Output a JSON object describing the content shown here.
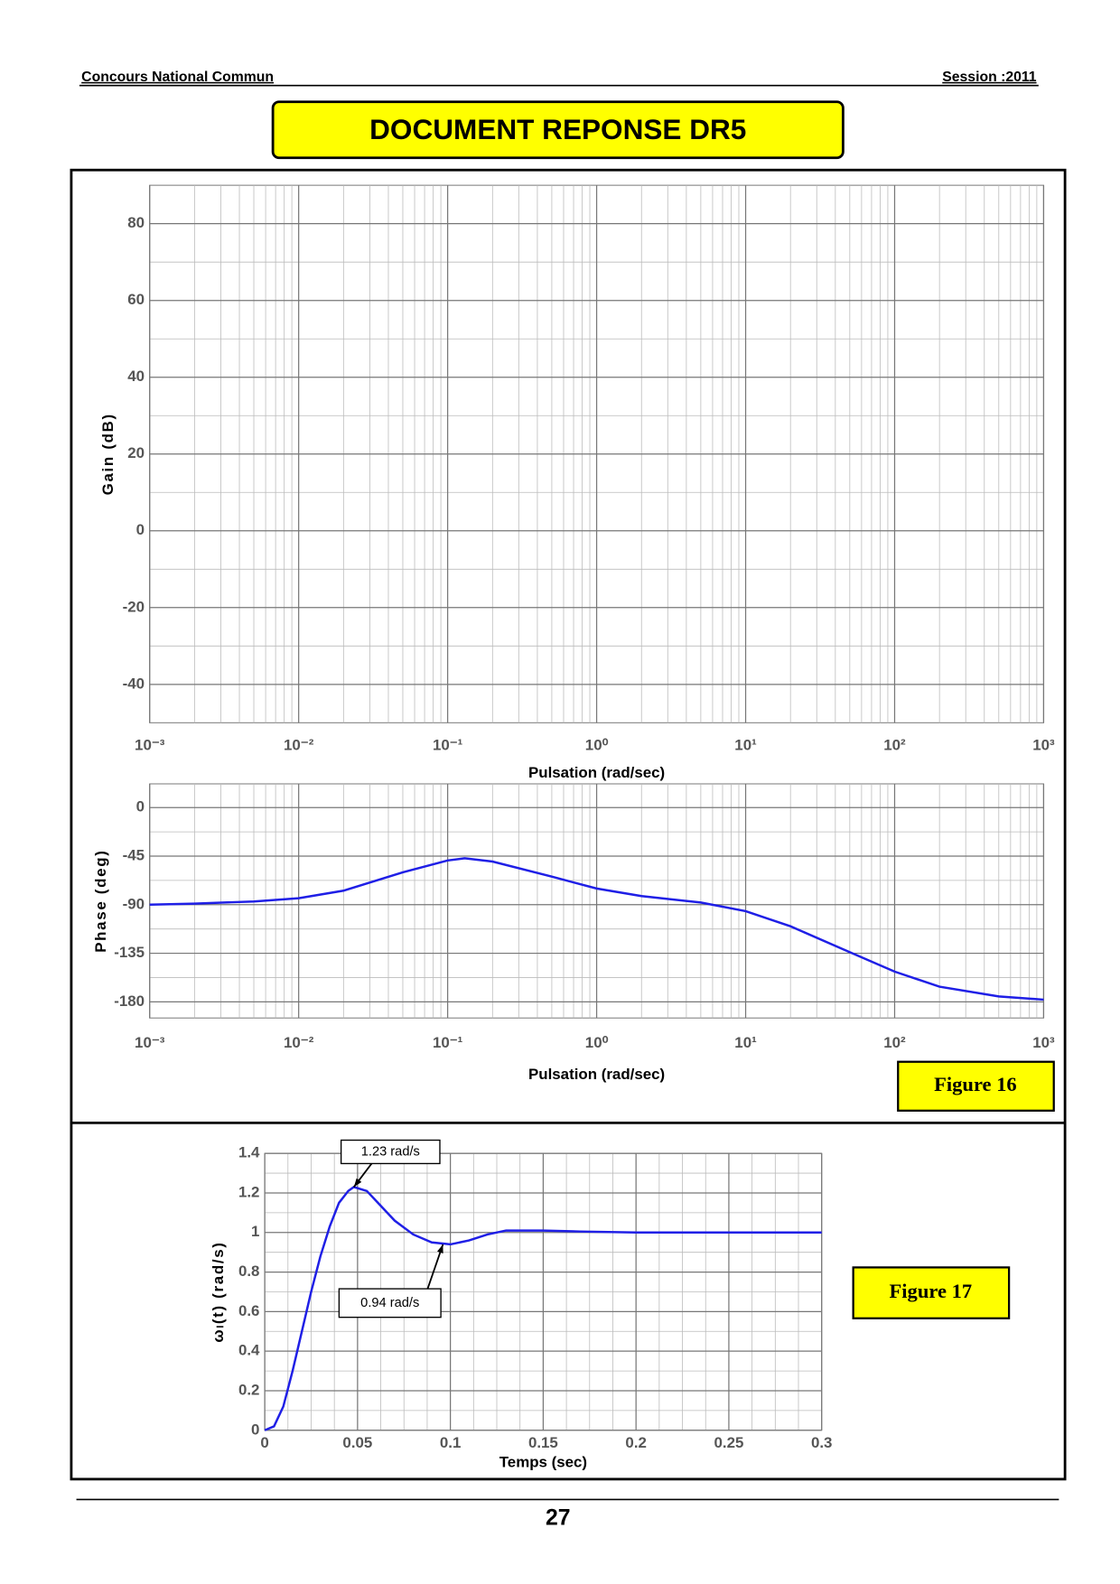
{
  "header": {
    "left": "Concours National Commun",
    "right": "Session :2011",
    "title": "DOCUMENT REPONSE DR5"
  },
  "chart_data": [
    {
      "type": "line",
      "xscale": "log",
      "xlim": [
        0.001,
        1000
      ],
      "ylim": [
        -50,
        90
      ],
      "xticks": [
        {
          "value": 0.001,
          "label": "10⁻³"
        },
        {
          "value": 0.01,
          "label": "10⁻²"
        },
        {
          "value": 0.1,
          "label": "10⁻¹"
        },
        {
          "value": 1,
          "label": "10⁰"
        },
        {
          "value": 10,
          "label": "10¹"
        },
        {
          "value": 100,
          "label": "10²"
        },
        {
          "value": 1000,
          "label": "10³"
        }
      ],
      "yticks": [
        80,
        60,
        40,
        20,
        0,
        -20,
        -40
      ],
      "grid": true,
      "minor_grid": true,
      "xlabel": "Pulsation  (rad/sec)",
      "ylabel": "Gain (dB)"
    },
    {
      "type": "line",
      "xscale": "log",
      "xlim": [
        0.001,
        1000
      ],
      "ylim": [
        -195,
        22
      ],
      "xticks": [
        {
          "value": 0.001,
          "label": "10⁻³"
        },
        {
          "value": 0.01,
          "label": "10⁻²"
        },
        {
          "value": 0.1,
          "label": "10⁻¹"
        },
        {
          "value": 1,
          "label": "10⁰"
        },
        {
          "value": 10,
          "label": "10¹"
        },
        {
          "value": 100,
          "label": "10²"
        },
        {
          "value": 1000,
          "label": "10³"
        }
      ],
      "yticks": [
        0,
        -45,
        -90,
        -135,
        -180
      ],
      "grid": true,
      "minor_grid": true,
      "xlabel": "Pulsation  (rad/sec)",
      "ylabel": "Phase (deg)",
      "x": [
        0.001,
        0.002,
        0.005,
        0.01,
        0.02,
        0.05,
        0.1,
        0.13,
        0.2,
        0.5,
        1,
        2,
        5,
        10,
        20,
        50,
        100,
        200,
        500,
        1000
      ],
      "series": [
        {
          "color": "#1f1fe6",
          "values": [
            -90,
            -89,
            -87,
            -84,
            -77,
            -60,
            -49,
            -47,
            -50,
            -64,
            -75,
            -82,
            -88,
            -96,
            -110,
            -134,
            -152,
            -166,
            -175,
            -178
          ]
        }
      ]
    },
    {
      "type": "line",
      "xlim": [
        0,
        0.3
      ],
      "ylim": [
        0,
        1.4
      ],
      "xticks": [
        0,
        0.05,
        0.1,
        0.15,
        0.2,
        0.25,
        0.3
      ],
      "yticks": [
        0,
        0.2,
        0.4,
        0.6,
        0.8,
        1,
        1.2,
        1.4
      ],
      "grid": true,
      "minor_grid": true,
      "xlabel": "Temps (sec)",
      "ylabel": "ωₗ(t)  (rad/s)",
      "x": [
        0,
        0.005,
        0.01,
        0.015,
        0.02,
        0.025,
        0.03,
        0.035,
        0.04,
        0.045,
        0.048,
        0.055,
        0.06,
        0.07,
        0.08,
        0.09,
        0.1,
        0.11,
        0.12,
        0.13,
        0.15,
        0.17,
        0.2,
        0.3
      ],
      "series": [
        {
          "color": "#1f1fe6",
          "values": [
            0,
            0.02,
            0.12,
            0.3,
            0.5,
            0.7,
            0.88,
            1.03,
            1.15,
            1.21,
            1.23,
            1.21,
            1.16,
            1.06,
            0.99,
            0.95,
            0.94,
            0.96,
            0.99,
            1.01,
            1.01,
            1.005,
            1,
            1
          ]
        }
      ],
      "annotations": [
        {
          "text": "1.23 rad/s",
          "x": 0.048,
          "y": 1.23
        },
        {
          "text": "0.94 rad/s",
          "x": 0.096,
          "y": 0.94
        }
      ]
    }
  ],
  "figure_labels": [
    "Figure 16",
    "Figure 17"
  ],
  "page_number": "27"
}
